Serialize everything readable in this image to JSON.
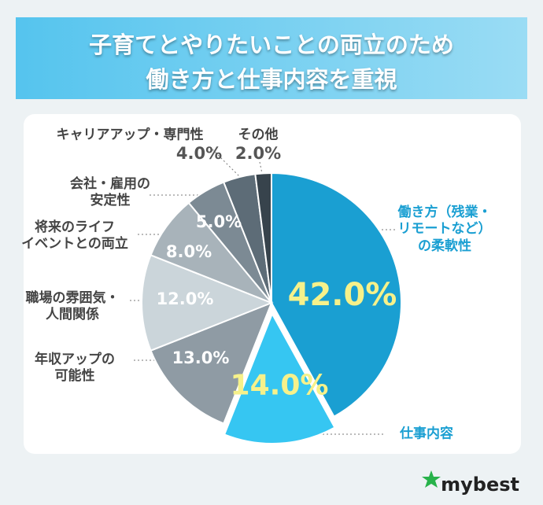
{
  "chart_data": {
    "type": "pie",
    "title": [
      "子育てとやりたいことの両立のため",
      "働き方と仕事内容を重視"
    ],
    "categories": [
      "働き方（残業・\nリモートなど）\nの柔軟性",
      "仕事内容",
      "年収アップの\n可能性",
      "職場の雰囲気・\n人間関係",
      "将来のライフ\nイベントとの両立",
      "会社・雇用の\n安定性",
      "キャリアアップ・専門性",
      "その他"
    ],
    "values": [
      42,
      14,
      13,
      12,
      8,
      5,
      4,
      2
    ],
    "value_labels": [
      "42.0%",
      "14.0%",
      "13.0%",
      "12.0%",
      "8.0%",
      "5.0%",
      "4.0%",
      "2.0%"
    ],
    "colors": [
      "#1a9fd2",
      "#36c6f2",
      "#8f9ba4",
      "#cbd5da",
      "#a8b3ba",
      "#7c8a94",
      "#5d6c77",
      "#37434c"
    ],
    "brand": "mybest"
  }
}
